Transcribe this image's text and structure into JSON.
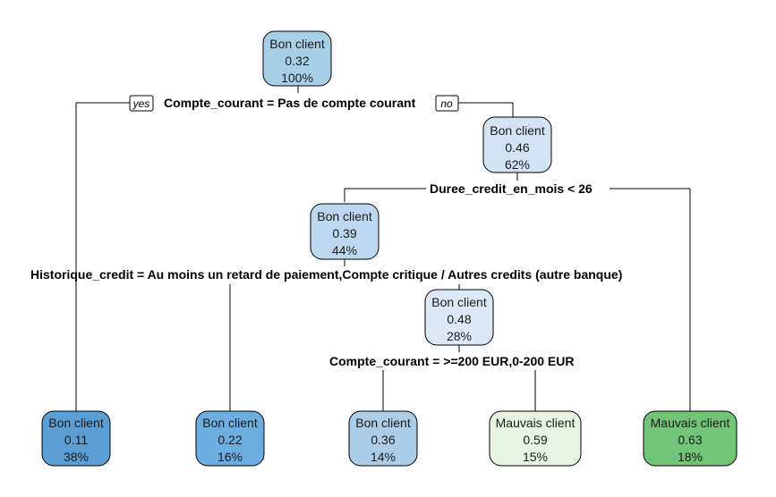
{
  "tree": {
    "nodes": {
      "root": {
        "class": "Bon client",
        "prob": "0.32",
        "pct": "100%",
        "color": "#a8cfe8"
      },
      "n_right": {
        "class": "Bon client",
        "prob": "0.46",
        "pct": "62%",
        "color": "#d2e4f4"
      },
      "n_mid": {
        "class": "Bon client",
        "prob": "0.39",
        "pct": "44%",
        "color": "#bcd7ef"
      },
      "n_inner": {
        "class": "Bon client",
        "prob": "0.48",
        "pct": "28%",
        "color": "#dbe9f6"
      },
      "leaf1": {
        "class": "Bon client",
        "prob": "0.11",
        "pct": "38%",
        "color": "#5a9ed3"
      },
      "leaf2": {
        "class": "Bon client",
        "prob": "0.22",
        "pct": "16%",
        "color": "#6caee0"
      },
      "leaf3": {
        "class": "Bon client",
        "prob": "0.36",
        "pct": "14%",
        "color": "#abcde8"
      },
      "leaf4": {
        "class": "Mauvais client",
        "prob": "0.59",
        "pct": "15%",
        "color": "#e6f4e0"
      },
      "leaf5": {
        "class": "Mauvais client",
        "prob": "0.63",
        "pct": "18%",
        "color": "#72c476"
      }
    },
    "splits": {
      "s1": "Compte_courant = Pas de compte courant",
      "s2": "Duree_credit_en_mois < 26",
      "s3": "Historique_credit = Au moins un retard de paiement,Compte critique / Autres credits (autre banque)",
      "s4": "Compte_courant = >=200 EUR,0-200 EUR"
    },
    "branch_tags": {
      "yes": "yes",
      "no": "no"
    }
  }
}
